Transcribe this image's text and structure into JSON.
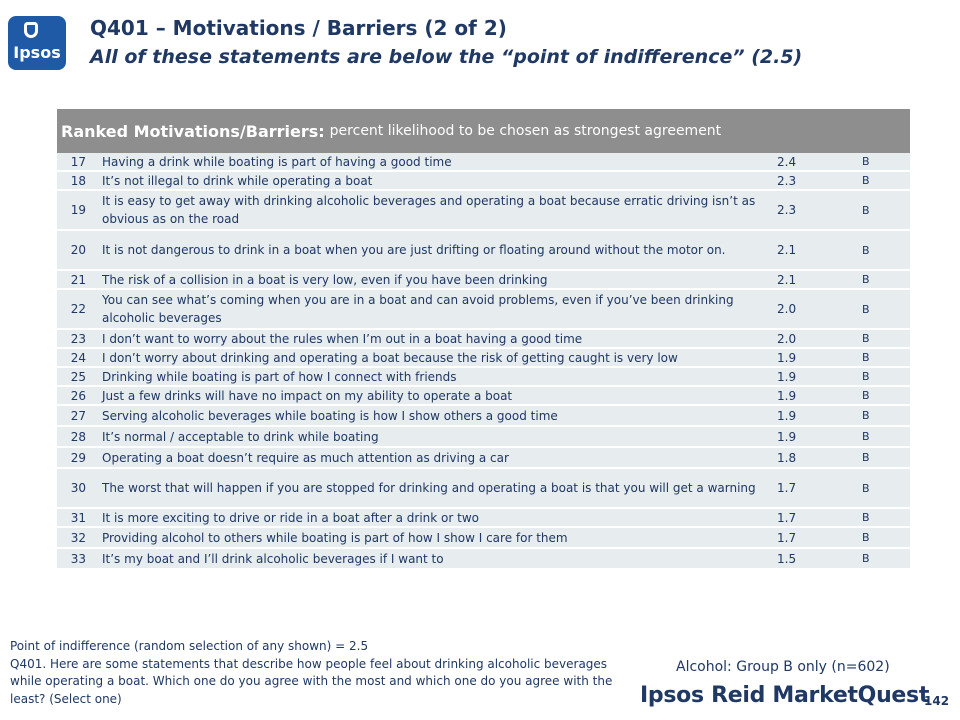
{
  "logo": {
    "text": "Ipsos"
  },
  "title": "Q401 – Motivations / Barriers (2 of 2)",
  "subtitle": "All of these statements are below the “point of indifference” (2.5)",
  "table": {
    "header_bold": "Ranked Motivations/Barriers:",
    "header_light": "percent likelihood to be chosen as strongest agreement",
    "rows": [
      {
        "num": "17",
        "text": "Having a drink while boating is part of having a good time",
        "score": "2.4",
        "group": "B"
      },
      {
        "num": "18",
        "text": "It’s not illegal to drink while operating a boat",
        "score": "2.3",
        "group": "B"
      },
      {
        "num": "19",
        "text": "It is easy to get away with drinking alcoholic beverages and operating a boat because erratic driving isn’t as obvious as on the road",
        "score": "2.3",
        "group": "B"
      },
      {
        "num": "20",
        "text": "It is not dangerous to drink in a boat when you are just drifting or floating around without the motor on.",
        "score": "2.1",
        "group": "B"
      },
      {
        "num": "21",
        "text": "The risk of a collision in a boat is very low, even if you have been drinking",
        "score": "2.1",
        "group": "B"
      },
      {
        "num": "22",
        "text": "You can see what’s coming when you are in a boat and can avoid problems, even if you’ve been drinking alcoholic beverages",
        "score": "2.0",
        "group": "B"
      },
      {
        "num": "23",
        "text": "I don’t want to worry about the rules when I’m out in a boat having a good time",
        "score": "2.0",
        "group": "B"
      },
      {
        "num": "24",
        "text": "I don’t worry about drinking and operating a boat because the risk of getting caught is very low",
        "score": "1.9",
        "group": "B"
      },
      {
        "num": "25",
        "text": "Drinking while boating is part of how I connect with friends",
        "score": "1.9",
        "group": "B"
      },
      {
        "num": "26",
        "text": "Just a few drinks will have no impact on my ability to operate a boat",
        "score": "1.9",
        "group": "B"
      },
      {
        "num": "27",
        "text": "Serving alcoholic beverages while boating is how I show others a good time",
        "score": "1.9",
        "group": "B"
      },
      {
        "num": "28",
        "text": "It’s normal / acceptable to drink while boating",
        "score": "1.9",
        "group": "B"
      },
      {
        "num": "29",
        "text": "Operating a boat doesn’t require as much attention as driving a car",
        "score": "1.8",
        "group": "B"
      },
      {
        "num": "30",
        "text": "The worst that will happen if you are stopped for drinking and operating a boat is that you will get a warning",
        "score": "1.7",
        "group": "B"
      },
      {
        "num": "31",
        "text": "It is more exciting to drive or ride in a boat after a drink or two",
        "score": "1.7",
        "group": "B"
      },
      {
        "num": "32",
        "text": "Providing alcohol to others while boating is part of how I show I care for them",
        "score": "1.7",
        "group": "B"
      },
      {
        "num": "33",
        "text": "It’s my boat and I’ll drink alcoholic beverages if I want to",
        "score": "1.5",
        "group": "B"
      }
    ]
  },
  "footer": {
    "note_line1": "Point of indifference (random selection of any shown) = 2.5",
    "note_line2": "Q401. Here are some statements that describe how people feel about drinking alcoholic beverages while operating a boat.  Which one do you agree with the most and which one do you agree with the least?   (Select one)",
    "base": "Alcohol: Group B only (n=602)",
    "brand": "Ipsos Reid MarketQuest",
    "page_number": "142"
  }
}
